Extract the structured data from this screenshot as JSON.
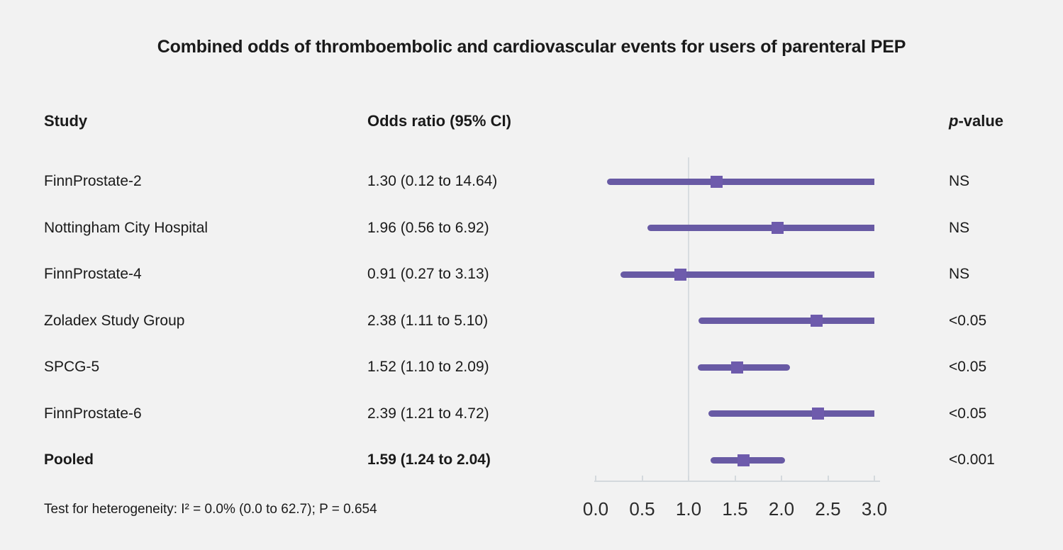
{
  "title": "Combined odds of thromboembolic and cardiovascular events for users of parenteral PEP",
  "columns": {
    "study": "Study",
    "or": "Odds ratio (95% CI)",
    "p_italic": "p",
    "p_rest": "-value"
  },
  "colors": {
    "background": "#f2f2f2",
    "text": "#1a1a1a",
    "bar": "#685aa4",
    "marker": "#6e5bac",
    "reference_line": "#d8dce0",
    "axis": "#d4d9dd"
  },
  "chart_data": {
    "type": "forest",
    "title": "Combined odds of thromboembolic and cardiovascular events for users of parenteral PEP",
    "x_ticks": [
      0.0,
      0.5,
      1.0,
      1.5,
      2.0,
      2.5,
      3.0
    ],
    "xlim": [
      0,
      3
    ],
    "reference_line": 1.0,
    "rows": [
      {
        "study": "FinnProstate-2",
        "or": 1.3,
        "ci_low": 0.12,
        "ci_high": 14.64,
        "or_label": "1.30 (0.12 to 14.64)",
        "p": "NS",
        "bold": false
      },
      {
        "study": "Nottingham City Hospital",
        "or": 1.96,
        "ci_low": 0.56,
        "ci_high": 6.92,
        "or_label": "1.96 (0.56 to 6.92)",
        "p": "NS",
        "bold": false
      },
      {
        "study": "FinnProstate-4",
        "or": 0.91,
        "ci_low": 0.27,
        "ci_high": 3.13,
        "or_label": "0.91 (0.27 to 3.13)",
        "p": "NS",
        "bold": false
      },
      {
        "study": "Zoladex Study Group",
        "or": 2.38,
        "ci_low": 1.11,
        "ci_high": 5.1,
        "or_label": "2.38 (1.11 to 5.10)",
        "p": "<0.05",
        "bold": false
      },
      {
        "study": "SPCG-5",
        "or": 1.52,
        "ci_low": 1.1,
        "ci_high": 2.09,
        "or_label": "1.52 (1.10 to 2.09)",
        "p": "<0.05",
        "bold": false
      },
      {
        "study": "FinnProstate-6",
        "or": 2.39,
        "ci_low": 1.21,
        "ci_high": 4.72,
        "or_label": "2.39 (1.21 to 4.72)",
        "p": "<0.05",
        "bold": false
      },
      {
        "study": "Pooled",
        "or": 1.59,
        "ci_low": 1.24,
        "ci_high": 2.04,
        "or_label": "1.59 (1.24 to 2.04)",
        "p": "<0.001",
        "bold": true
      }
    ],
    "heterogeneity": "Test for heterogeneity: I² = 0.0% (0.0 to 62.7); P = 0.654"
  }
}
